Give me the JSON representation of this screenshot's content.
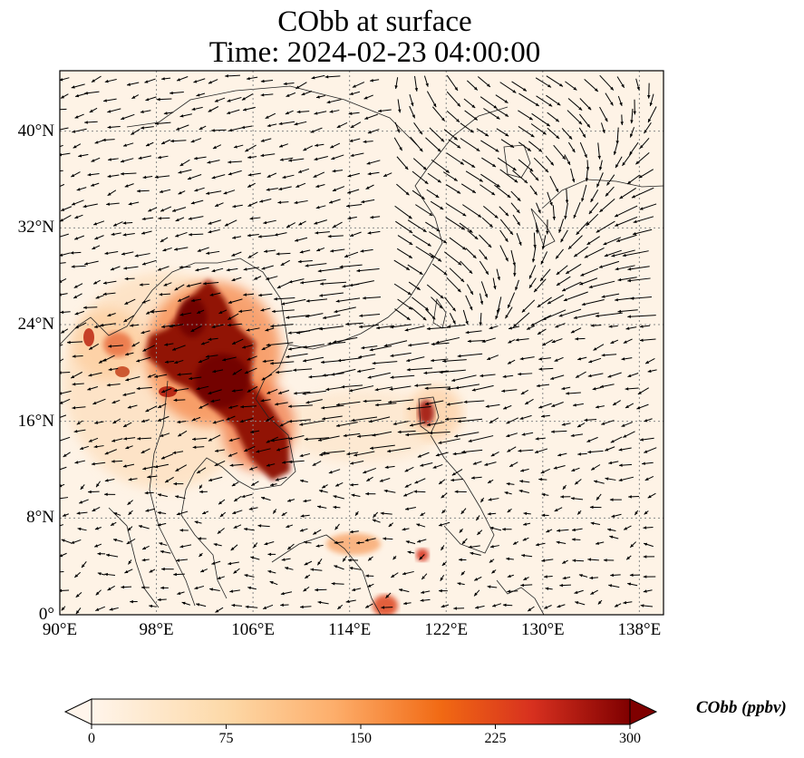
{
  "title": {
    "line1": "CObb at surface",
    "line2": "Time: 2024-02-23 04:00:00"
  },
  "map": {
    "lon_range": [
      90,
      140
    ],
    "lat_range": [
      0,
      45
    ],
    "x_ticks": [
      "90°E",
      "98°E",
      "106°E",
      "114°E",
      "122°E",
      "130°E",
      "138°E"
    ],
    "y_ticks": [
      "0°",
      "8°N",
      "16°N",
      "24°N",
      "32°N",
      "40°N"
    ],
    "gridlines": "dotted",
    "layers": [
      "CObb concentration field",
      "wind vectors",
      "coastlines"
    ]
  },
  "colorbar": {
    "title": "CObb (ppbv)",
    "ticks": [
      "0",
      "75",
      "150",
      "225",
      "300"
    ],
    "min": 0,
    "max": 300,
    "extend": "both",
    "colormap": [
      "#fff5eb",
      "#fdd9a8",
      "#fdae6b",
      "#f16913",
      "#d7301f",
      "#7f0000"
    ]
  }
}
